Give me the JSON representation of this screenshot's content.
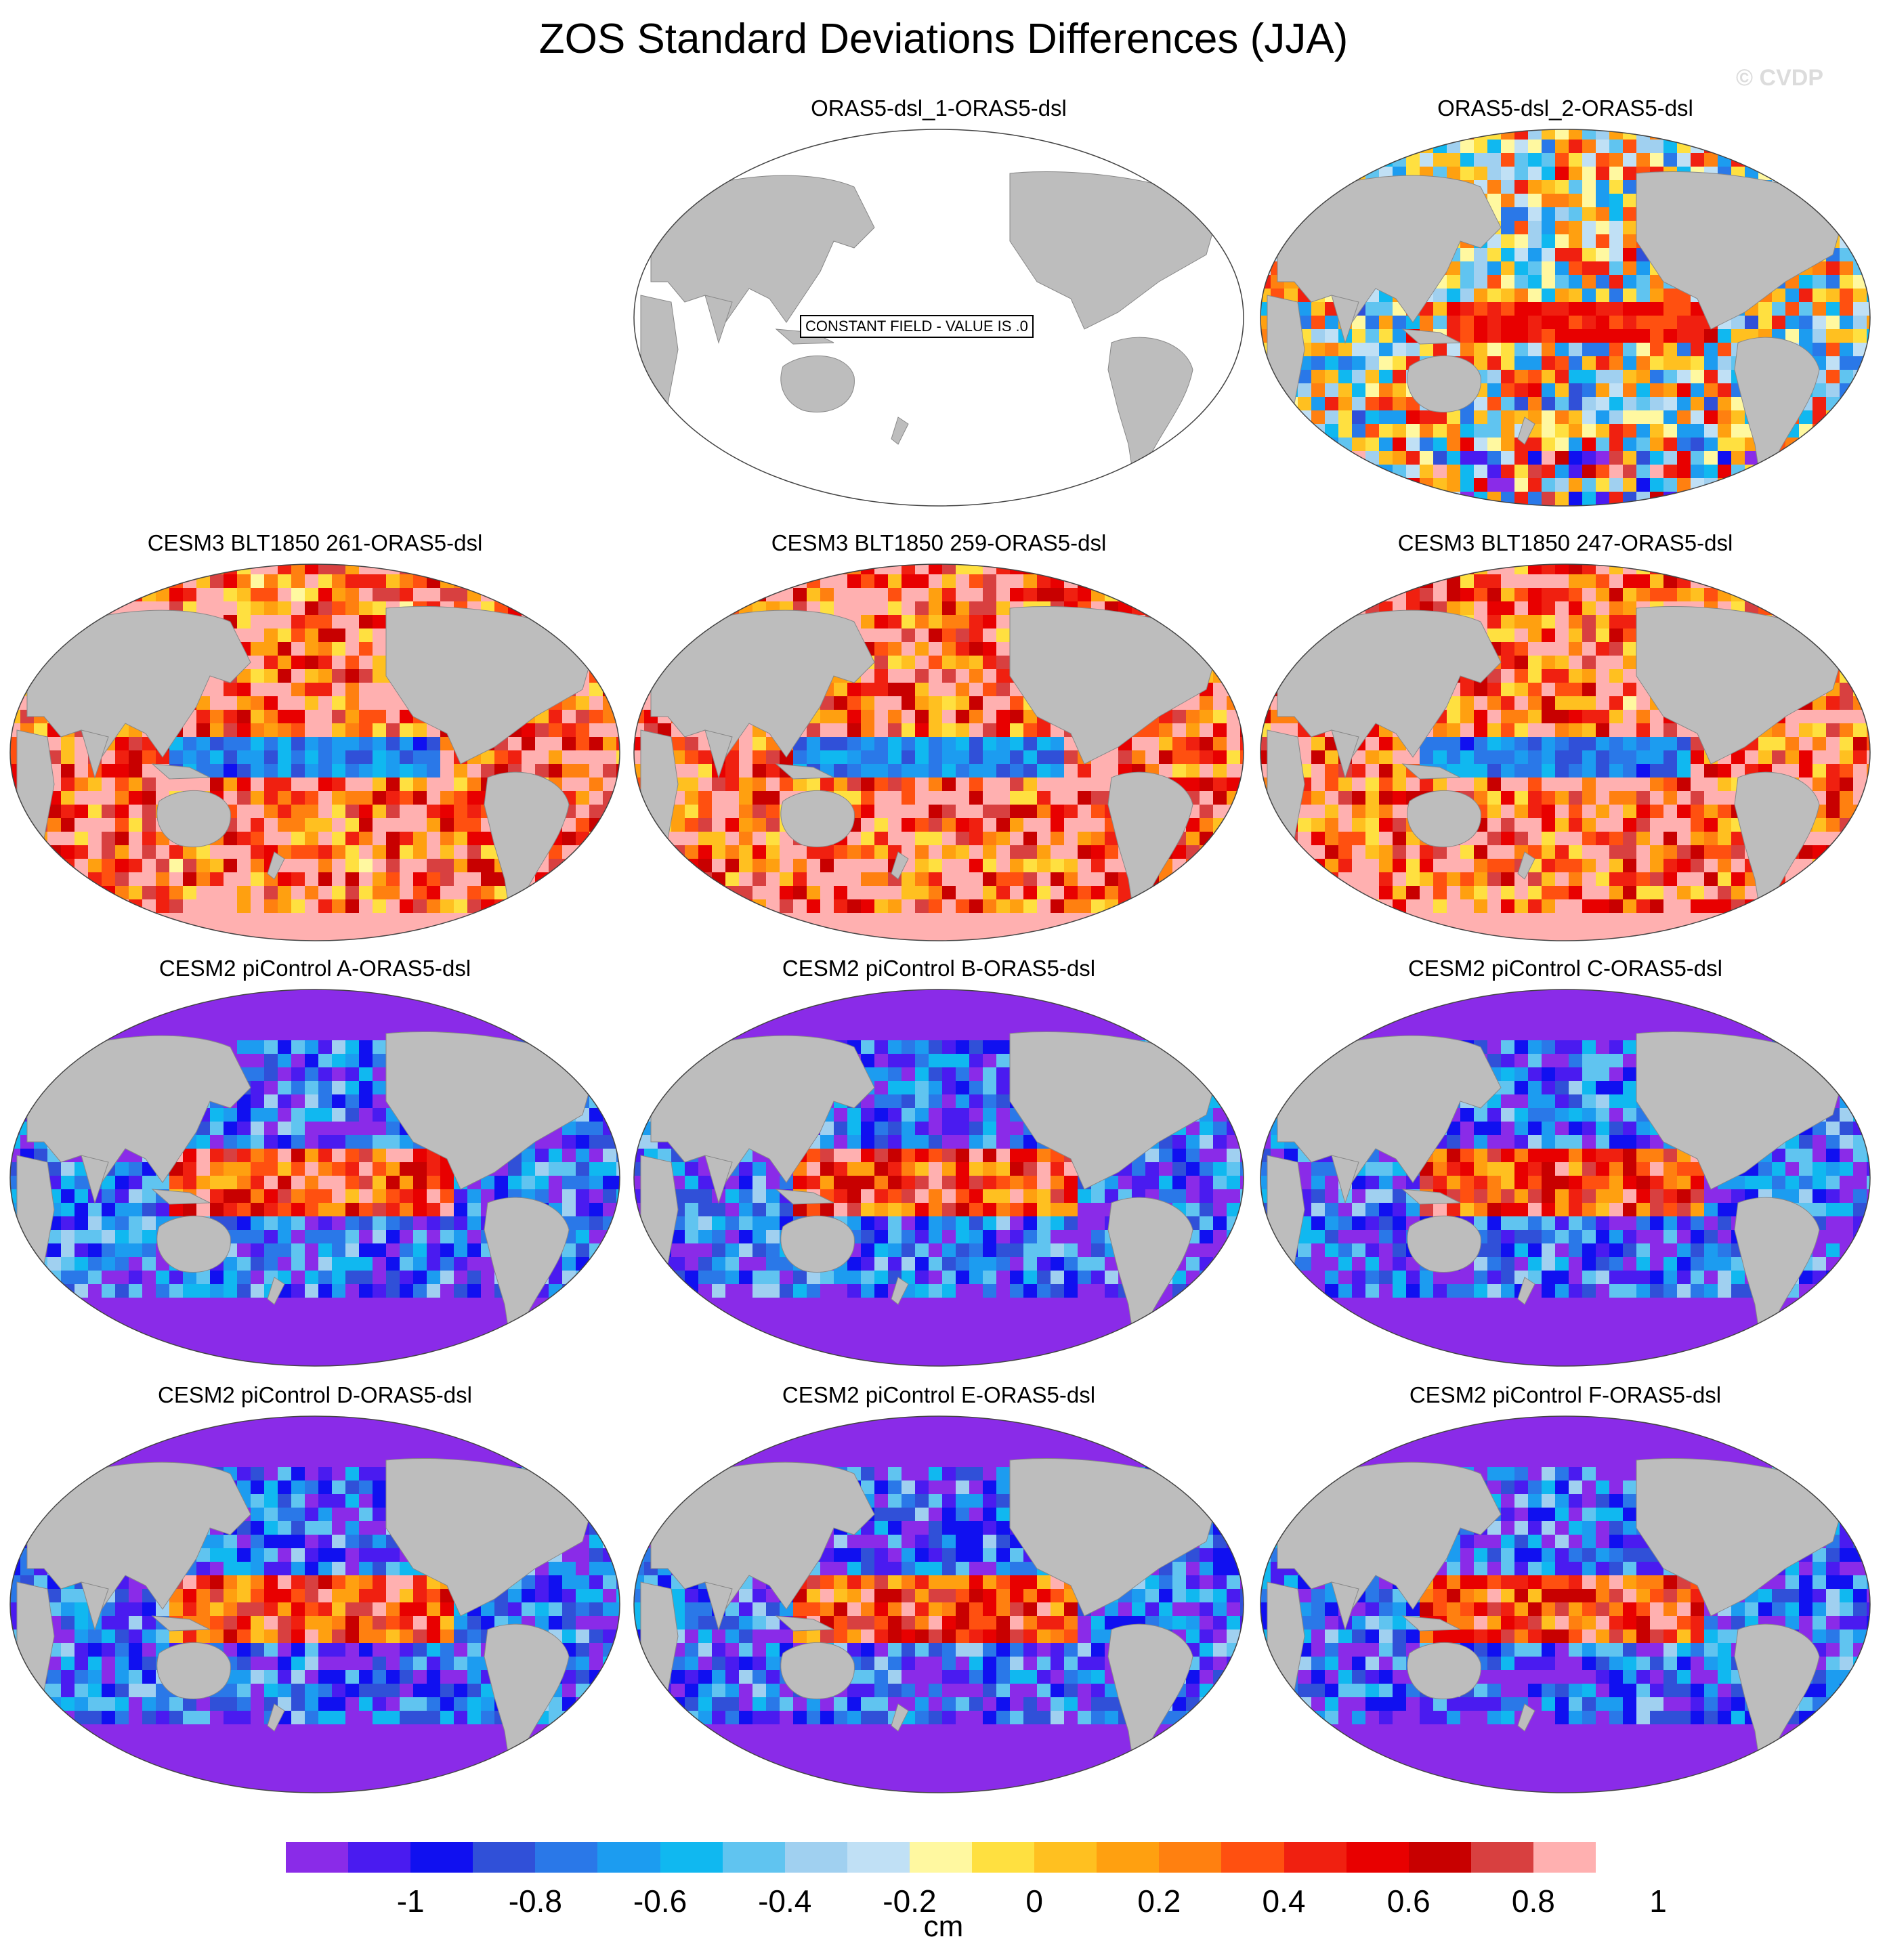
{
  "figure": {
    "title": "ZOS Standard Deviations Differences (JJA)",
    "copyright": "© CVDP",
    "constant_field_label": "CONSTANT FIELD - VALUE IS .0"
  },
  "panels": [
    {
      "title": "ORAS5-dsl_1-ORAS5-dsl",
      "style": "constant"
    },
    {
      "title": "ORAS5-dsl_2-ORAS5-dsl",
      "style": "noisy"
    },
    {
      "title": "CESM3 BLT1850 261-ORAS5-dsl",
      "style": "high"
    },
    {
      "title": "CESM3 BLT1850 259-ORAS5-dsl",
      "style": "high"
    },
    {
      "title": "CESM3 BLT1850 247-ORAS5-dsl",
      "style": "high"
    },
    {
      "title": "CESM2 piControl A-ORAS5-dsl",
      "style": "low"
    },
    {
      "title": "CESM2 piControl B-ORAS5-dsl",
      "style": "low"
    },
    {
      "title": "CESM2 piControl C-ORAS5-dsl",
      "style": "low"
    },
    {
      "title": "CESM2 piControl D-ORAS5-dsl",
      "style": "low"
    },
    {
      "title": "CESM2 piControl E-ORAS5-dsl",
      "style": "low"
    },
    {
      "title": "CESM2 piControl F-ORAS5-dsl",
      "style": "low"
    }
  ],
  "colorbar": {
    "units": "cm",
    "colors": [
      "#8A2BE8",
      "#4A1BF0",
      "#1010F0",
      "#3050D8",
      "#2A78E8",
      "#1C9CF0",
      "#10B8F0",
      "#60C4F0",
      "#A0D0F0",
      "#C0E0F5",
      "#FFF8A0",
      "#FFE040",
      "#FFC020",
      "#FFA010",
      "#FF8010",
      "#FF5010",
      "#F02010",
      "#E80000",
      "#C80000",
      "#D84040",
      "#FFB0B0"
    ],
    "labels": [
      "-1",
      "-0.8",
      "-0.6",
      "-0.4",
      "-0.2",
      "0",
      "0.2",
      "0.4",
      "0.6",
      "0.8",
      "1"
    ]
  }
}
